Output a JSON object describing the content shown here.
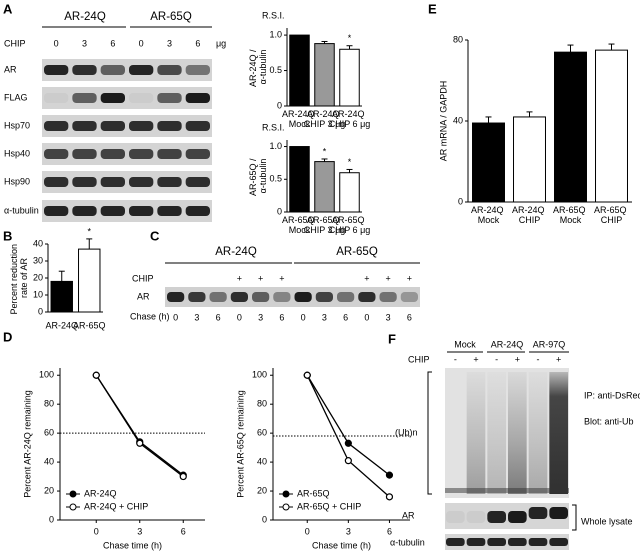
{
  "panel_labels": [
    "A",
    "B",
    "C",
    "D",
    "E",
    "F"
  ],
  "blot_A": {
    "groups": [
      "AR-24Q",
      "AR-65Q"
    ],
    "treatment_label": "CHIP",
    "doses": [
      "0",
      "3",
      "6",
      "0",
      "3",
      "6"
    ],
    "dose_unit": "μg",
    "rows": [
      "AR",
      "FLAG",
      "Hsp70",
      "Hsp40",
      "Hsp90",
      "α-tubulin"
    ]
  },
  "blot_C": {
    "groups": [
      "AR-24Q",
      "AR-65Q"
    ],
    "treatment_label": "CHIP",
    "treatment_marks": [
      null,
      null,
      null,
      "+",
      "+",
      "+",
      null,
      null,
      null,
      "+",
      "+",
      "+"
    ],
    "row": "AR",
    "time_label": "Chase (h)",
    "times": [
      "0",
      "3",
      "6",
      "0",
      "3",
      "6",
      "0",
      "3",
      "6",
      "0",
      "3",
      "6"
    ]
  },
  "blot_F": {
    "groups": [
      "Mock",
      "AR-24Q",
      "AR-97Q"
    ],
    "treatment_label": "CHIP",
    "treatment_marks": [
      "-",
      "+",
      "-",
      "+",
      "-",
      "+"
    ],
    "smear_label": "(Ub)n",
    "ip_label": "IP: anti-DsRed",
    "blot_label": "Blot: anti-Ub",
    "rows": [
      "AR",
      "α-tubulin"
    ],
    "lysate_label": "Whole lysate"
  },
  "chart_data": [
    {
      "type": "bar",
      "unit_label": "R.S.I.",
      "y_label": "AR-24Q / α-tubulin",
      "categories": [
        "AR-24Q Mock",
        "AR-24Q CHIP 3 μg",
        "AR-24Q CHIP 6 μg"
      ],
      "values": [
        1.0,
        0.88,
        0.8
      ],
      "errors": [
        null,
        0.03,
        0.05
      ],
      "colors": [
        "#000000",
        "#999999",
        "#ffffff"
      ],
      "markers": [
        null,
        null,
        "*"
      ],
      "ylim": [
        0,
        1.1
      ],
      "yticks": [
        0,
        0.5,
        {
          "value": 1,
          "label": "1.0"
        }
      ]
    },
    {
      "type": "bar",
      "unit_label": "R.S.I.",
      "y_label": "AR-65Q / α-tubulin",
      "categories": [
        "AR-65Q Mock",
        "AR-65Q CHIP 3 μg",
        "AR-65Q CHIP 6 μg"
      ],
      "values": [
        1.0,
        0.77,
        0.6
      ],
      "errors": [
        null,
        0.04,
        0.05
      ],
      "colors": [
        "#000000",
        "#999999",
        "#ffffff"
      ],
      "markers": [
        null,
        "*",
        "*"
      ],
      "ylim": [
        0,
        1.1
      ],
      "yticks": [
        0,
        0.5,
        {
          "value": 1,
          "label": "1.0"
        }
      ]
    },
    {
      "type": "bar",
      "y_label": "Percent reduction rate of AR",
      "categories": [
        "AR-24Q",
        "AR-65Q"
      ],
      "values": [
        18,
        37
      ],
      "errors": [
        6,
        6
      ],
      "colors": [
        "#000000",
        "#ffffff"
      ],
      "markers": [
        null,
        "*"
      ],
      "ylim": [
        0,
        40
      ],
      "yticks": [
        0,
        10,
        20,
        30,
        40
      ]
    },
    {
      "type": "line",
      "x": [
        0,
        3,
        6
      ],
      "series": [
        {
          "name": "AR-24Q",
          "color": "#000000",
          "fill": "#000000",
          "values": [
            100,
            54,
            31
          ]
        },
        {
          "name": "AR-24Q + CHIP",
          "color": "#000000",
          "fill": "#ffffff",
          "values": [
            100,
            53,
            30
          ]
        }
      ],
      "xlim": [
        -2.5,
        7.5
      ],
      "xticks": [
        0,
        3,
        6
      ],
      "ylim": [
        0,
        105
      ],
      "yticks": [
        0,
        20,
        40,
        60,
        80,
        100
      ],
      "reference_line": 60,
      "x_label": "Chase time (h)",
      "y_label": "Percent AR-24Q remaining",
      "legend": "lower left"
    },
    {
      "type": "line",
      "x": [
        0,
        3,
        6
      ],
      "series": [
        {
          "name": "AR-65Q",
          "color": "#000000",
          "fill": "#000000",
          "values": [
            100,
            53,
            31
          ]
        },
        {
          "name": "AR-65Q + CHIP",
          "color": "#000000",
          "fill": "#ffffff",
          "values": [
            100,
            41,
            16
          ]
        }
      ],
      "xlim": [
        -2.5,
        7.5
      ],
      "xticks": [
        0,
        3,
        6
      ],
      "ylim": [
        0,
        105
      ],
      "yticks": [
        0,
        20,
        40,
        60,
        80,
        100
      ],
      "reference_line": 58,
      "x_label": "Chase time (h)",
      "y_label": "Percent AR-65Q remaining",
      "legend": "lower left"
    },
    {
      "type": "bar",
      "y_label": "AR mRNA / GAPDH",
      "categories": [
        "AR-24Q Mock",
        "AR-24Q CHIP",
        "AR-65Q Mock",
        "AR-65Q CHIP"
      ],
      "values": [
        39,
        42,
        74,
        75
      ],
      "errors": [
        3,
        2.5,
        3.5,
        3
      ],
      "colors": [
        "#000000",
        "#ffffff",
        "#000000",
        "#ffffff"
      ],
      "markers": [
        null,
        null,
        null,
        null
      ],
      "ylim": [
        0,
        80
      ],
      "yticks": [
        0,
        40,
        80
      ]
    }
  ]
}
